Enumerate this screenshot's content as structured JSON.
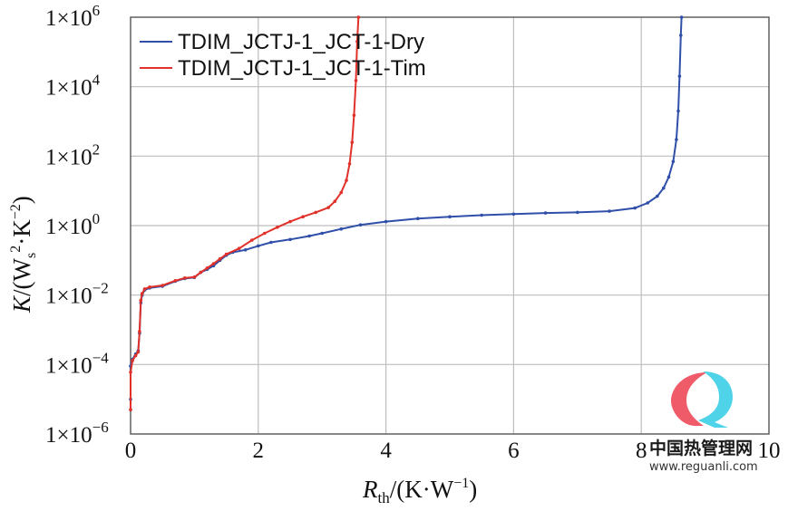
{
  "chart_data": {
    "type": "line",
    "x": {
      "label_symbol": "R",
      "label_subscript": "th",
      "label_unit": "/(K·W",
      "label_unit_exp": "−1",
      "label_close": ")",
      "lim": [
        0,
        10
      ],
      "ticks": [
        0,
        2,
        4,
        6,
        8,
        10
      ],
      "tick_labels": [
        "0",
        "2",
        "4",
        "6",
        "8",
        "10"
      ]
    },
    "y": {
      "scale": "log",
      "label_symbol": "K",
      "label_unit_a": "/(W",
      "label_unit_sub": "s",
      "label_unit_sup": "2",
      "label_unit_b": "·K",
      "label_unit_sup2": "−2",
      "label_close": ")",
      "lim": [
        1e-06,
        1000000.0
      ],
      "ticks": [
        1e-06,
        0.0001,
        0.01,
        1.0,
        100.0,
        10000.0,
        1000000.0
      ],
      "tick_labels": [
        {
          "base": "1×10",
          "exp": "−6"
        },
        {
          "base": "1×10",
          "exp": "−4"
        },
        {
          "base": "1×10",
          "exp": "−2"
        },
        {
          "base": "1×10",
          "exp": "0"
        },
        {
          "base": "1×10",
          "exp": "2"
        },
        {
          "base": "1×10",
          "exp": "4"
        },
        {
          "base": "1×10",
          "exp": "6"
        }
      ]
    },
    "grid": true,
    "legend_position": "top-left",
    "series": [
      {
        "name": "TDIM_JCTJ-1_JCT-1-Dry",
        "color": "#2f4fa8",
        "points": [
          [
            0.0,
            1e-05
          ],
          [
            0.0,
            9e-05
          ],
          [
            0.03,
            0.00014
          ],
          [
            0.08,
            0.0002
          ],
          [
            0.12,
            0.00025
          ],
          [
            0.14,
            0.0008
          ],
          [
            0.16,
            0.006
          ],
          [
            0.18,
            0.01
          ],
          [
            0.22,
            0.014
          ],
          [
            0.3,
            0.016
          ],
          [
            0.5,
            0.018
          ],
          [
            0.7,
            0.025
          ],
          [
            0.85,
            0.03
          ],
          [
            1.0,
            0.032
          ],
          [
            1.1,
            0.045
          ],
          [
            1.2,
            0.055
          ],
          [
            1.3,
            0.07
          ],
          [
            1.4,
            0.1
          ],
          [
            1.5,
            0.14
          ],
          [
            1.6,
            0.17
          ],
          [
            1.8,
            0.2
          ],
          [
            2.0,
            0.26
          ],
          [
            2.2,
            0.33
          ],
          [
            2.5,
            0.4
          ],
          [
            2.8,
            0.5
          ],
          [
            3.0,
            0.6
          ],
          [
            3.3,
            0.8
          ],
          [
            3.6,
            1.05
          ],
          [
            4.0,
            1.3
          ],
          [
            4.5,
            1.6
          ],
          [
            5.0,
            1.8
          ],
          [
            5.5,
            2.0
          ],
          [
            6.0,
            2.15
          ],
          [
            6.5,
            2.3
          ],
          [
            7.0,
            2.4
          ],
          [
            7.5,
            2.6
          ],
          [
            7.9,
            3.2
          ],
          [
            8.1,
            4.5
          ],
          [
            8.25,
            7.0
          ],
          [
            8.35,
            12
          ],
          [
            8.43,
            25
          ],
          [
            8.5,
            70
          ],
          [
            8.55,
            300
          ],
          [
            8.58,
            2000
          ],
          [
            8.6,
            20000
          ],
          [
            8.62,
            300000
          ],
          [
            8.63,
            1000000
          ]
        ]
      },
      {
        "name": "TDIM_JCTJ-1_JCT-1-Tim",
        "color": "#e0312a",
        "points": [
          [
            0.0,
            5e-06
          ],
          [
            0.0,
            6e-05
          ],
          [
            0.03,
            0.00013
          ],
          [
            0.08,
            0.00018
          ],
          [
            0.12,
            0.00023
          ],
          [
            0.14,
            0.0009
          ],
          [
            0.16,
            0.007
          ],
          [
            0.18,
            0.011
          ],
          [
            0.22,
            0.015
          ],
          [
            0.3,
            0.017
          ],
          [
            0.5,
            0.019
          ],
          [
            0.7,
            0.026
          ],
          [
            0.85,
            0.031
          ],
          [
            1.0,
            0.033
          ],
          [
            1.1,
            0.045
          ],
          [
            1.2,
            0.06
          ],
          [
            1.3,
            0.08
          ],
          [
            1.4,
            0.11
          ],
          [
            1.5,
            0.15
          ],
          [
            1.7,
            0.22
          ],
          [
            1.9,
            0.38
          ],
          [
            2.1,
            0.6
          ],
          [
            2.3,
            0.9
          ],
          [
            2.5,
            1.3
          ],
          [
            2.7,
            1.8
          ],
          [
            2.9,
            2.4
          ],
          [
            3.1,
            3.3
          ],
          [
            3.2,
            5.0
          ],
          [
            3.3,
            9.0
          ],
          [
            3.38,
            20
          ],
          [
            3.43,
            60
          ],
          [
            3.47,
            250
          ],
          [
            3.5,
            1500
          ],
          [
            3.53,
            15000
          ],
          [
            3.55,
            200000
          ],
          [
            3.57,
            1000000
          ]
        ]
      }
    ]
  },
  "watermark": {
    "cn_text": "中国热管理网",
    "url": "www.reguanli.com",
    "colors": {
      "left": "#ef5b68",
      "right": "#4fd3e8"
    }
  }
}
